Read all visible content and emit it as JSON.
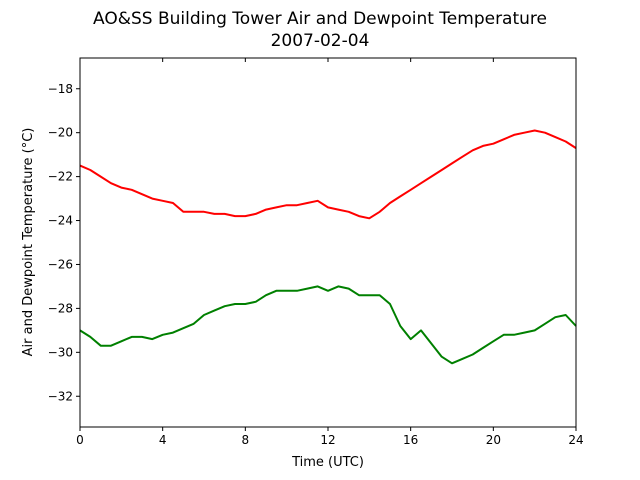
{
  "chart_data": {
    "type": "line",
    "title": "AO&SS Building Tower Air and Dewpoint Temperature",
    "subtitle": "2007-02-04",
    "xlabel": "Time (UTC)",
    "ylabel": "Air and Dewpoint Temperature (°C)",
    "xlim": [
      0,
      24
    ],
    "ylim": [
      -33.4,
      -16.6
    ],
    "xticks": [
      0,
      4,
      8,
      12,
      16,
      20,
      24
    ],
    "yticks": [
      -32,
      -30,
      -28,
      -26,
      -24,
      -22,
      -20,
      -18
    ],
    "grid": false,
    "series": [
      {
        "color": "#ff0000",
        "x": [
          0,
          0.5,
          1,
          1.5,
          2,
          2.5,
          3,
          3.5,
          4,
          4.5,
          5,
          5.5,
          6,
          6.5,
          7,
          7.5,
          8,
          8.5,
          9,
          9.5,
          10,
          10.5,
          11,
          11.5,
          12,
          12.5,
          13,
          13.5,
          14,
          14.5,
          15,
          15.5,
          16,
          16.5,
          17,
          17.5,
          18,
          18.5,
          19,
          19.5,
          20,
          20.5,
          21,
          21.5,
          22,
          22.5,
          23,
          23.5,
          24
        ],
        "y": [
          -21.5,
          -21.7,
          -22.0,
          -22.3,
          -22.5,
          -22.6,
          -22.8,
          -23.0,
          -23.1,
          -23.2,
          -23.6,
          -23.6,
          -23.6,
          -23.7,
          -23.7,
          -23.8,
          -23.8,
          -23.7,
          -23.5,
          -23.4,
          -23.3,
          -23.3,
          -23.2,
          -23.1,
          -23.4,
          -23.5,
          -23.6,
          -23.8,
          -23.9,
          -23.6,
          -23.2,
          -22.9,
          -22.6,
          -22.3,
          -22.0,
          -21.7,
          -21.4,
          -21.1,
          -20.8,
          -20.6,
          -20.5,
          -20.3,
          -20.1,
          -20.0,
          -19.9,
          -20.0,
          -20.2,
          -20.4,
          -20.7
        ]
      },
      {
        "color": "#008000",
        "x": [
          0,
          0.5,
          1,
          1.5,
          2,
          2.5,
          3,
          3.5,
          4,
          4.5,
          5,
          5.5,
          6,
          6.5,
          7,
          7.5,
          8,
          8.5,
          9,
          9.5,
          10,
          10.5,
          11,
          11.5,
          12,
          12.5,
          13,
          13.5,
          14,
          14.5,
          15,
          15.5,
          16,
          16.5,
          17,
          17.5,
          18,
          18.5,
          19,
          19.5,
          20,
          20.5,
          21,
          21.5,
          22,
          22.5,
          23,
          23.5,
          24
        ],
        "y": [
          -29.0,
          -29.3,
          -29.7,
          -29.7,
          -29.5,
          -29.3,
          -29.3,
          -29.4,
          -29.2,
          -29.1,
          -28.9,
          -28.7,
          -28.3,
          -28.1,
          -27.9,
          -27.8,
          -27.8,
          -27.7,
          -27.4,
          -27.2,
          -27.2,
          -27.2,
          -27.1,
          -27.0,
          -27.2,
          -27.0,
          -27.1,
          -27.4,
          -27.4,
          -27.4,
          -27.8,
          -28.8,
          -29.4,
          -29.0,
          -29.6,
          -30.2,
          -30.5,
          -30.3,
          -30.1,
          -29.8,
          -29.5,
          -29.2,
          -29.2,
          -29.1,
          -29.0,
          -28.7,
          -28.4,
          -28.3,
          -28.8
        ]
      }
    ]
  }
}
